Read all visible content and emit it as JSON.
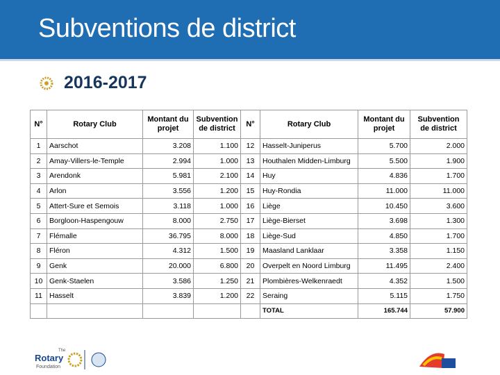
{
  "header": {
    "title": "Subventions de district"
  },
  "subtitle": "2016-2017",
  "table": {
    "columns": [
      "N°",
      "Rotary Club",
      "Montant du projet",
      "Subvention de district",
      "N°",
      "Rotary Club",
      "Montant du projet",
      "Subvention de district"
    ],
    "rows": [
      [
        "1",
        "Aarschot",
        "3.208",
        "1.100",
        "12",
        "Hasselt-Juniperus",
        "5.700",
        "2.000"
      ],
      [
        "2",
        "Amay-Villers-le-Temple",
        "2.994",
        "1.000",
        "13",
        "Houthalen Midden-Limburg",
        "5.500",
        "1.900"
      ],
      [
        "3",
        "Arendonk",
        "5.981",
        "2.100",
        "14",
        "Huy",
        "4.836",
        "1.700"
      ],
      [
        "4",
        "Arlon",
        "3.556",
        "1.200",
        "15",
        "Huy-Rondia",
        "11.000",
        "11.000"
      ],
      [
        "5",
        "Attert-Sure et Semois",
        "3.118",
        "1.000",
        "16",
        "Liège",
        "10.450",
        "3.600"
      ],
      [
        "6",
        "Borgloon-Haspengouw",
        "8.000",
        "2.750",
        "17",
        "Liège-Bierset",
        "3.698",
        "1.300"
      ],
      [
        "7",
        "Flémalle",
        "36.795",
        "8.000",
        "18",
        "Liège-Sud",
        "4.850",
        "1.700"
      ],
      [
        "8",
        "Fléron",
        "4.312",
        "1.500",
        "19",
        "Maasland Lanklaar",
        "3.358",
        "1.150"
      ],
      [
        "9",
        "Genk",
        "20.000",
        "6.800",
        "20",
        "Overpelt en Noord Limburg",
        "11.495",
        "2.400"
      ],
      [
        "10",
        "Genk-Staelen",
        "3.586",
        "1.250",
        "21",
        "Plombières-Welkenraedt",
        "4.352",
        "1.500"
      ],
      [
        "11",
        "Hasselt",
        "3.839",
        "1.200",
        "22",
        "Seraing",
        "5.115",
        "1.750"
      ]
    ],
    "total": {
      "label": "TOTAL",
      "montant": "165.744",
      "subvention": "57.900"
    }
  },
  "footer": {
    "logo_the": "The",
    "logo_name": "Rotary",
    "logo_sub": "Foundation"
  }
}
